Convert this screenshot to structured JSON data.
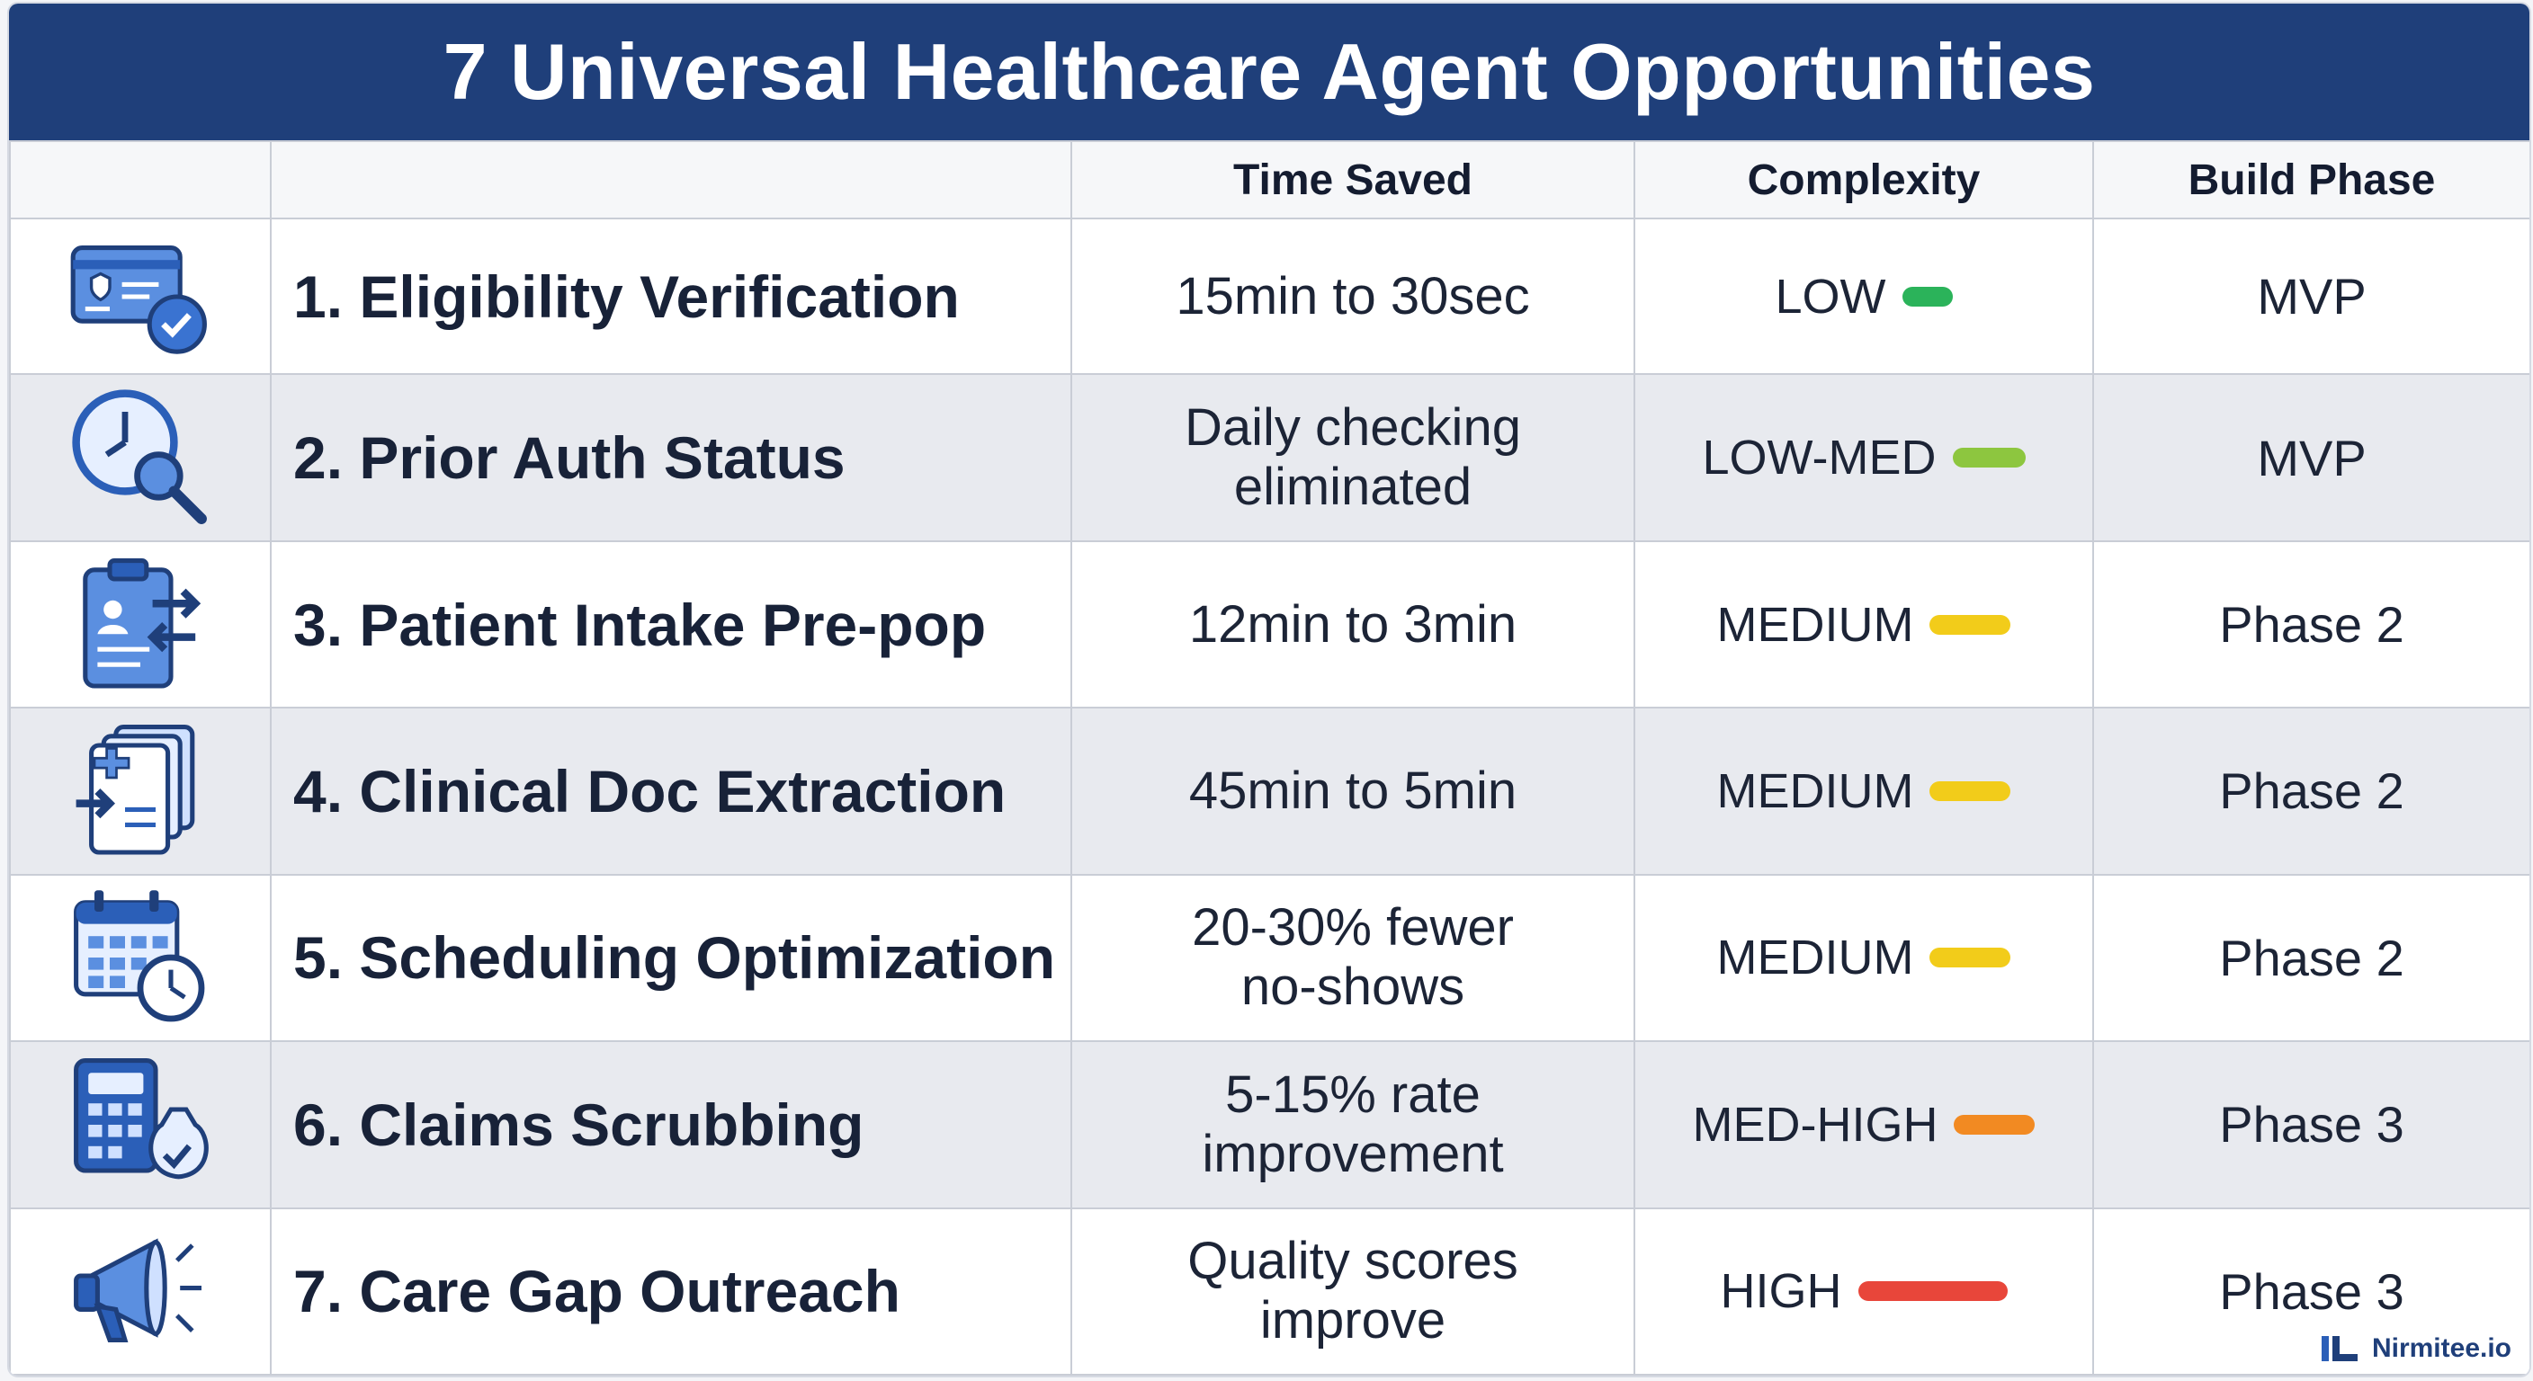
{
  "title": "7 Universal Healthcare Agent Opportunities",
  "columns": {
    "blank1": "",
    "blank2": "",
    "time": "Time Saved",
    "complexity": "Complexity",
    "phase": "Build Phase"
  },
  "rows": [
    {
      "name": "1. Eligibility Verification",
      "time": "15min to 30sec",
      "complexity": "LOW",
      "complexity_color": "#2bb35a",
      "complexity_bar": 0.15,
      "phase": "MVP",
      "icon": "id-card-check-icon"
    },
    {
      "name": "2. Prior Auth Status",
      "time": "Daily checking eliminated",
      "complexity": "LOW-MED",
      "complexity_color": "#8dc63f",
      "complexity_bar": 0.3,
      "phase": "MVP",
      "icon": "clock-search-icon"
    },
    {
      "name": "3. Patient Intake Pre-pop",
      "time": "12min to 3min",
      "complexity": "MEDIUM",
      "complexity_color": "#f2cc1a",
      "complexity_bar": 0.35,
      "phase": "Phase 2",
      "icon": "clipboard-transfer-icon"
    },
    {
      "name": "4. Clinical Doc Extraction",
      "time": "45min to 5min",
      "complexity": "MEDIUM",
      "complexity_color": "#f2cc1a",
      "complexity_bar": 0.35,
      "phase": "Phase 2",
      "icon": "documents-extract-icon"
    },
    {
      "name": "5. Scheduling Optimization",
      "time": "20-30% fewer no-shows",
      "complexity": "MEDIUM",
      "complexity_color": "#f2cc1a",
      "complexity_bar": 0.35,
      "phase": "Phase 2",
      "icon": "calendar-clock-icon"
    },
    {
      "name": "6. Claims Scrubbing",
      "time": "5-15% rate improvement",
      "complexity": "MED-HIGH",
      "complexity_color": "#f28a22",
      "complexity_bar": 0.35,
      "phase": "Phase 3",
      "icon": "calculator-moneybag-icon"
    },
    {
      "name": "7. Care Gap Outreach",
      "time": "Quality scores improve",
      "complexity": "HIGH",
      "complexity_color": "#e8463a",
      "complexity_bar": 0.8,
      "phase": "Phase 3",
      "icon": "megaphone-icon"
    }
  ],
  "brand": "Nirmitee.io",
  "colors": {
    "header": "#1f3f7a",
    "icon_primary": "#2b5fb8",
    "icon_light": "#5b8fe0"
  }
}
